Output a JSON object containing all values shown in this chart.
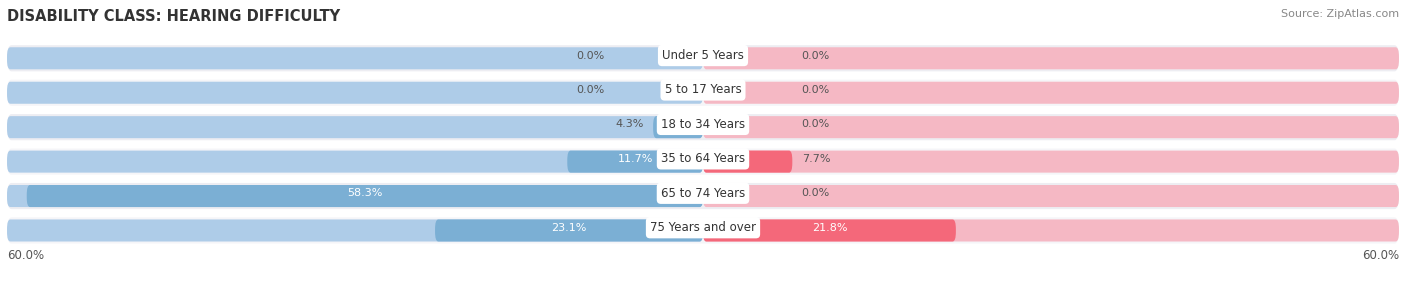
{
  "title": "DISABILITY CLASS: HEARING DIFFICULTY",
  "source": "Source: ZipAtlas.com",
  "categories": [
    "Under 5 Years",
    "5 to 17 Years",
    "18 to 34 Years",
    "35 to 64 Years",
    "65 to 74 Years",
    "75 Years and over"
  ],
  "male_values": [
    0.0,
    0.0,
    4.3,
    11.7,
    58.3,
    23.1
  ],
  "female_values": [
    0.0,
    0.0,
    0.0,
    7.7,
    0.0,
    21.8
  ],
  "male_color": "#7bafd4",
  "female_color": "#f4687a",
  "male_color_light": "#aecce8",
  "female_color_light": "#f5b8c4",
  "row_bg_odd": "#ededf2",
  "row_bg_even": "#f5f5f8",
  "max_val": 60.0,
  "x_left_label": "60.0%",
  "x_right_label": "60.0%",
  "title_fontsize": 10.5,
  "source_fontsize": 8,
  "label_fontsize": 8.5,
  "value_fontsize": 8,
  "tick_fontsize": 8.5
}
